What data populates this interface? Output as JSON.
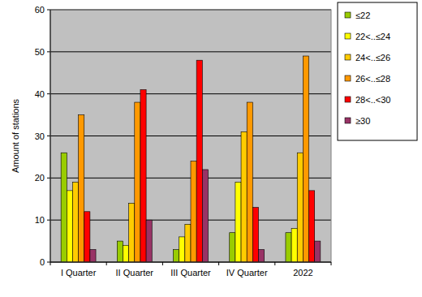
{
  "chart_data": {
    "type": "bar",
    "y_label": "Amount of stations",
    "categories": [
      "I Quarter",
      "II Quarter",
      "III Quarter",
      "IV Quarter",
      "2022"
    ],
    "series": [
      {
        "name": "≤22",
        "color": "#99cc00",
        "values": [
          26,
          5,
          3,
          7,
          7
        ]
      },
      {
        "name": "22<..≤24",
        "color": "#ffff00",
        "values": [
          17,
          4,
          6,
          19,
          8
        ]
      },
      {
        "name": "24<..≤26",
        "color": "#ffcc00",
        "values": [
          19,
          14,
          9,
          31,
          26
        ]
      },
      {
        "name": "26<..≤28",
        "color": "#ff9900",
        "values": [
          35,
          38,
          24,
          38,
          49
        ]
      },
      {
        "name": "28<..<30",
        "color": "#ff0000",
        "values": [
          12,
          41,
          48,
          13,
          17
        ]
      },
      {
        "name": "≥30",
        "color": "#993366",
        "values": [
          3,
          10,
          22,
          3,
          5
        ]
      }
    ],
    "ylim": [
      0,
      60
    ],
    "yticks": [
      0,
      10,
      20,
      30,
      40,
      50,
      60
    ],
    "grid": true,
    "legend": "top-right"
  }
}
